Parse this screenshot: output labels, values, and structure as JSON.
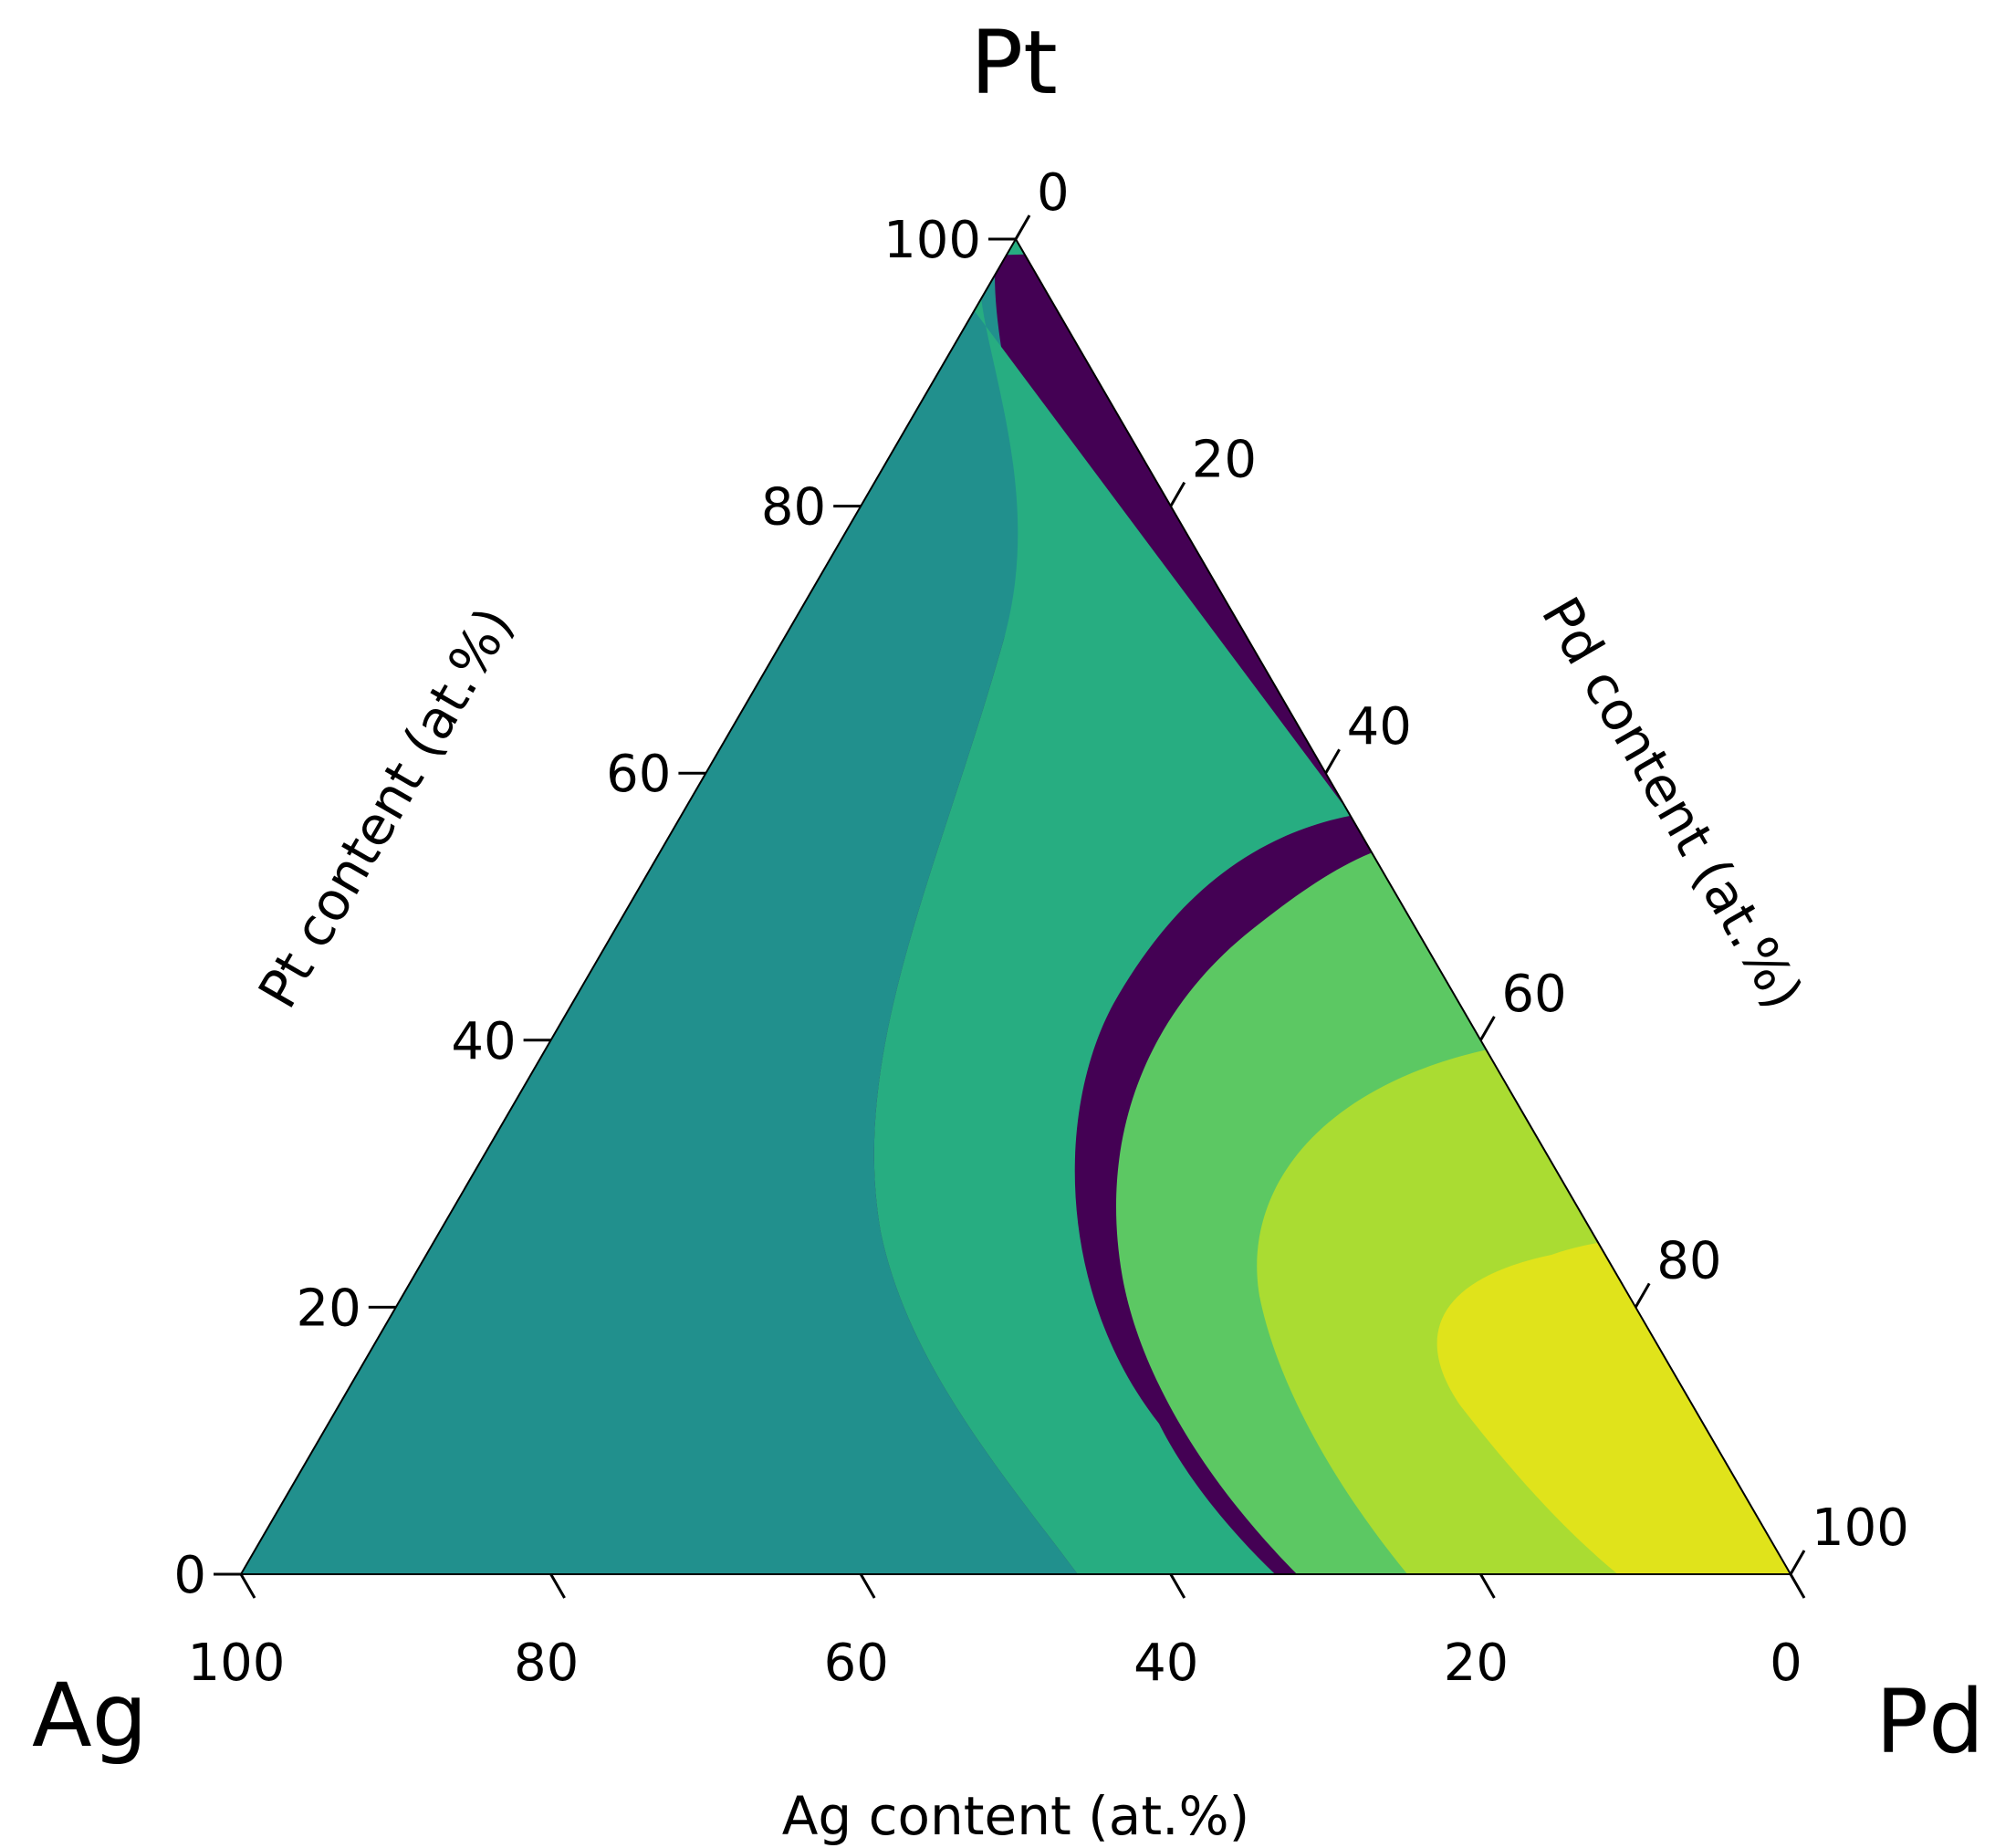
{
  "chart_data": {
    "type": "heatmap",
    "subtype": "ternary-filled-contour",
    "colormap": "viridis",
    "corners": {
      "top": "Pt",
      "left": "Ag",
      "right": "Pd"
    },
    "axes": {
      "left": {
        "label": "Pt content (at.%)",
        "component": "Pt",
        "ticks": [
          "0",
          "20",
          "40",
          "60",
          "80",
          "100"
        ]
      },
      "right": {
        "label": "Pd content (at.%)",
        "component": "Pd",
        "ticks": [
          "0",
          "20",
          "40",
          "60",
          "80",
          "100"
        ]
      },
      "bottom": {
        "label": "Ag content (at.%)",
        "component": "Ag",
        "ticks": [
          "100",
          "80",
          "60",
          "40",
          "20",
          "0"
        ]
      }
    },
    "range": [
      0,
      100
    ],
    "contour_levels": 10,
    "level_colors": [
      "#440154",
      "#48186a",
      "#472d7b",
      "#3b528b",
      "#2c728e",
      "#21908d",
      "#27ad81",
      "#5cc863",
      "#aadc32",
      "#e0e31b"
    ],
    "trend": "values increase from the Ag corner (lowest) toward the Pd-rich lower right region (highest, near Pd ~80%, Pt ~10%)",
    "grid": false,
    "colorbar": false
  }
}
